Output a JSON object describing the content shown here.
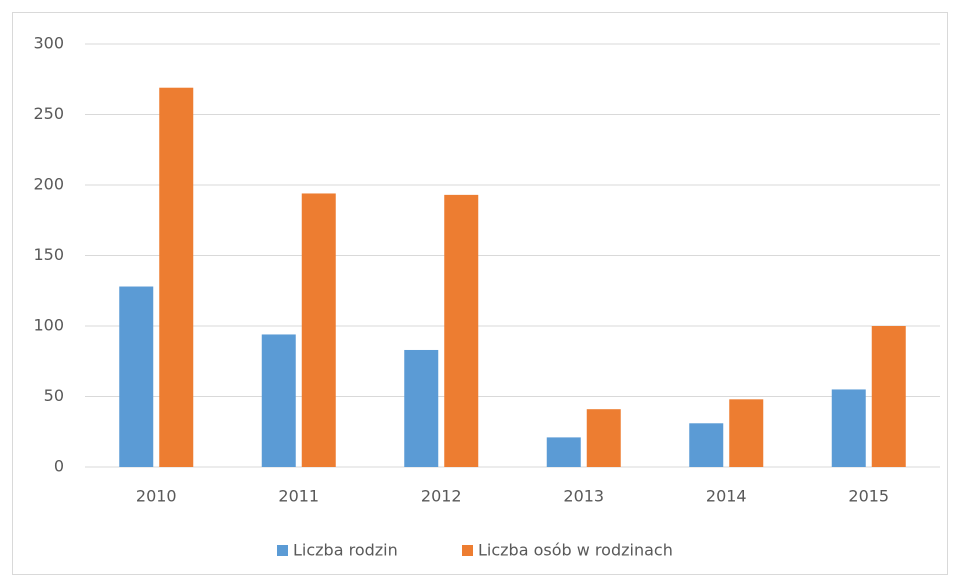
{
  "chart_data": {
    "type": "bar",
    "categories": [
      "2010",
      "2011",
      "2012",
      "2013",
      "2014",
      "2015"
    ],
    "series": [
      {
        "name": "Liczba rodzin",
        "color": "#5b9bd5",
        "values": [
          128,
          94,
          83,
          21,
          31,
          55
        ]
      },
      {
        "name": "Liczba osób w rodzinach",
        "color": "#ed7d31",
        "values": [
          269,
          194,
          193,
          41,
          48,
          100
        ]
      }
    ],
    "ylim": [
      0,
      300
    ],
    "yticks": [
      0,
      50,
      100,
      150,
      200,
      250,
      300
    ],
    "grid": true,
    "legend": "bottom"
  }
}
